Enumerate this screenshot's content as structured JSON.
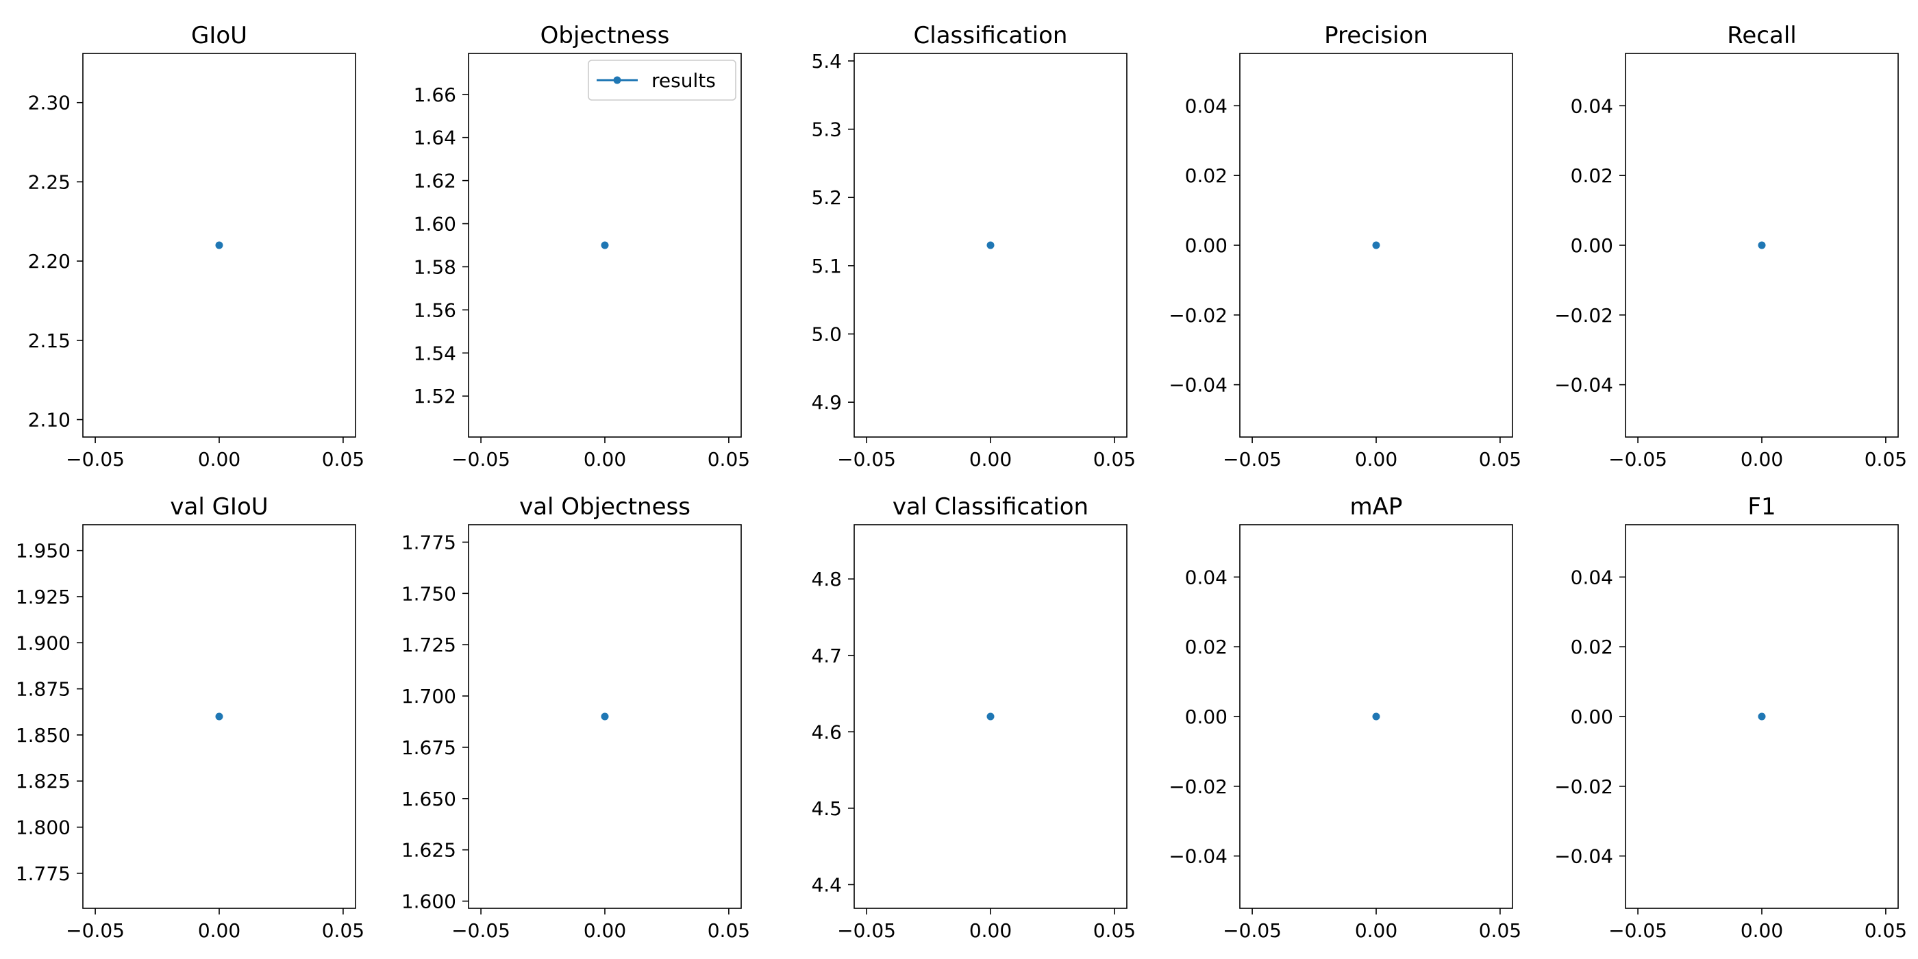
{
  "chart_data": [
    {
      "type": "scatter",
      "title": "GIoU",
      "x": [
        0.0
      ],
      "y": [
        2.21
      ],
      "xlim": [
        -0.055,
        0.055
      ],
      "ylim": [
        2.089,
        2.331
      ],
      "xticks": [
        -0.05,
        0.0,
        0.05
      ],
      "xtick_labels": [
        "−0.05",
        "0.00",
        "0.05"
      ],
      "yticks": [
        2.1,
        2.15,
        2.2,
        2.25,
        2.3
      ],
      "ytick_labels": [
        "2.10",
        "2.15",
        "2.20",
        "2.25",
        "2.30"
      ],
      "series": [
        {
          "name": "results",
          "x": [
            0.0
          ],
          "y": [
            2.21
          ]
        }
      ]
    },
    {
      "type": "scatter",
      "title": "Objectness",
      "x": [
        0.0
      ],
      "y": [
        1.59
      ],
      "xlim": [
        -0.055,
        0.055
      ],
      "ylim": [
        1.501,
        1.679
      ],
      "xticks": [
        -0.05,
        0.0,
        0.05
      ],
      "xtick_labels": [
        "−0.05",
        "0.00",
        "0.05"
      ],
      "yticks": [
        1.52,
        1.54,
        1.56,
        1.58,
        1.6,
        1.62,
        1.64,
        1.66
      ],
      "ytick_labels": [
        "1.52",
        "1.54",
        "1.56",
        "1.58",
        "1.60",
        "1.62",
        "1.64",
        "1.66"
      ],
      "legend": {
        "entries": [
          "results"
        ],
        "placement": "upper right"
      },
      "series": [
        {
          "name": "results",
          "x": [
            0.0
          ],
          "y": [
            1.59
          ]
        }
      ]
    },
    {
      "type": "scatter",
      "title": "Classification",
      "x": [
        0.0
      ],
      "y": [
        5.13
      ],
      "xlim": [
        -0.055,
        0.055
      ],
      "ylim": [
        4.849,
        5.411
      ],
      "xticks": [
        -0.05,
        0.0,
        0.05
      ],
      "xtick_labels": [
        "−0.05",
        "0.00",
        "0.05"
      ],
      "yticks": [
        4.9,
        5.0,
        5.1,
        5.2,
        5.3,
        5.4
      ],
      "ytick_labels": [
        "4.9",
        "5.0",
        "5.1",
        "5.2",
        "5.3",
        "5.4"
      ],
      "series": [
        {
          "name": "results",
          "x": [
            0.0
          ],
          "y": [
            5.13
          ]
        }
      ]
    },
    {
      "type": "scatter",
      "title": "Precision",
      "x": [
        0.0
      ],
      "y": [
        0.0
      ],
      "xlim": [
        -0.055,
        0.055
      ],
      "ylim": [
        -0.055,
        0.055
      ],
      "xticks": [
        -0.05,
        0.0,
        0.05
      ],
      "xtick_labels": [
        "−0.05",
        "0.00",
        "0.05"
      ],
      "yticks": [
        -0.04,
        -0.02,
        0.0,
        0.02,
        0.04
      ],
      "ytick_labels": [
        "−0.04",
        "−0.02",
        "0.00",
        "0.02",
        "0.04"
      ],
      "series": [
        {
          "name": "results",
          "x": [
            0.0
          ],
          "y": [
            0.0
          ]
        }
      ]
    },
    {
      "type": "scatter",
      "title": "Recall",
      "x": [
        0.0
      ],
      "y": [
        0.0
      ],
      "xlim": [
        -0.055,
        0.055
      ],
      "ylim": [
        -0.055,
        0.055
      ],
      "xticks": [
        -0.05,
        0.0,
        0.05
      ],
      "xtick_labels": [
        "−0.05",
        "0.00",
        "0.05"
      ],
      "yticks": [
        -0.04,
        -0.02,
        0.0,
        0.02,
        0.04
      ],
      "ytick_labels": [
        "−0.04",
        "−0.02",
        "0.00",
        "0.02",
        "0.04"
      ],
      "series": [
        {
          "name": "results",
          "x": [
            0.0
          ],
          "y": [
            0.0
          ]
        }
      ]
    },
    {
      "type": "scatter",
      "title": "val GIoU",
      "x": [
        0.0
      ],
      "y": [
        1.86
      ],
      "xlim": [
        -0.055,
        0.055
      ],
      "ylim": [
        1.756,
        1.964
      ],
      "xticks": [
        -0.05,
        0.0,
        0.05
      ],
      "xtick_labels": [
        "−0.05",
        "0.00",
        "0.05"
      ],
      "yticks": [
        1.775,
        1.8,
        1.825,
        1.85,
        1.875,
        1.9,
        1.925,
        1.95
      ],
      "ytick_labels": [
        "1.775",
        "1.800",
        "1.825",
        "1.850",
        "1.875",
        "1.900",
        "1.925",
        "1.950"
      ],
      "series": [
        {
          "name": "results",
          "x": [
            0.0
          ],
          "y": [
            1.86
          ]
        }
      ]
    },
    {
      "type": "scatter",
      "title": "val Objectness",
      "x": [
        0.0
      ],
      "y": [
        1.69
      ],
      "xlim": [
        -0.055,
        0.055
      ],
      "ylim": [
        1.5965,
        1.7835
      ],
      "xticks": [
        -0.05,
        0.0,
        0.05
      ],
      "xtick_labels": [
        "−0.05",
        "0.00",
        "0.05"
      ],
      "yticks": [
        1.6,
        1.625,
        1.65,
        1.675,
        1.7,
        1.725,
        1.75,
        1.775
      ],
      "ytick_labels": [
        "1.600",
        "1.625",
        "1.650",
        "1.675",
        "1.700",
        "1.725",
        "1.750",
        "1.775"
      ],
      "series": [
        {
          "name": "results",
          "x": [
            0.0
          ],
          "y": [
            1.69
          ]
        }
      ]
    },
    {
      "type": "scatter",
      "title": "val Classification",
      "x": [
        0.0
      ],
      "y": [
        4.62
      ],
      "xlim": [
        -0.055,
        0.055
      ],
      "ylim": [
        4.369,
        4.871
      ],
      "xticks": [
        -0.05,
        0.0,
        0.05
      ],
      "xtick_labels": [
        "−0.05",
        "0.00",
        "0.05"
      ],
      "yticks": [
        4.4,
        4.5,
        4.6,
        4.7,
        4.8
      ],
      "ytick_labels": [
        "4.4",
        "4.5",
        "4.6",
        "4.7",
        "4.8"
      ],
      "series": [
        {
          "name": "results",
          "x": [
            0.0
          ],
          "y": [
            4.62
          ]
        }
      ]
    },
    {
      "type": "scatter",
      "title": "mAP",
      "x": [
        0.0
      ],
      "y": [
        0.0
      ],
      "xlim": [
        -0.055,
        0.055
      ],
      "ylim": [
        -0.055,
        0.055
      ],
      "xticks": [
        -0.05,
        0.0,
        0.05
      ],
      "xtick_labels": [
        "−0.05",
        "0.00",
        "0.05"
      ],
      "yticks": [
        -0.04,
        -0.02,
        0.0,
        0.02,
        0.04
      ],
      "ytick_labels": [
        "−0.04",
        "−0.02",
        "0.00",
        "0.02",
        "0.04"
      ],
      "series": [
        {
          "name": "results",
          "x": [
            0.0
          ],
          "y": [
            0.0
          ]
        }
      ]
    },
    {
      "type": "scatter",
      "title": "F1",
      "x": [
        0.0
      ],
      "y": [
        0.0
      ],
      "xlim": [
        -0.055,
        0.055
      ],
      "ylim": [
        -0.055,
        0.055
      ],
      "xticks": [
        -0.05,
        0.0,
        0.05
      ],
      "xtick_labels": [
        "−0.05",
        "0.00",
        "0.05"
      ],
      "yticks": [
        -0.04,
        -0.02,
        0.0,
        0.02,
        0.04
      ],
      "ytick_labels": [
        "−0.04",
        "−0.02",
        "0.00",
        "0.02",
        "0.04"
      ],
      "series": [
        {
          "name": "results",
          "x": [
            0.0
          ],
          "y": [
            0.0
          ]
        }
      ]
    }
  ],
  "style": {
    "series_color": "#1f77b4"
  }
}
